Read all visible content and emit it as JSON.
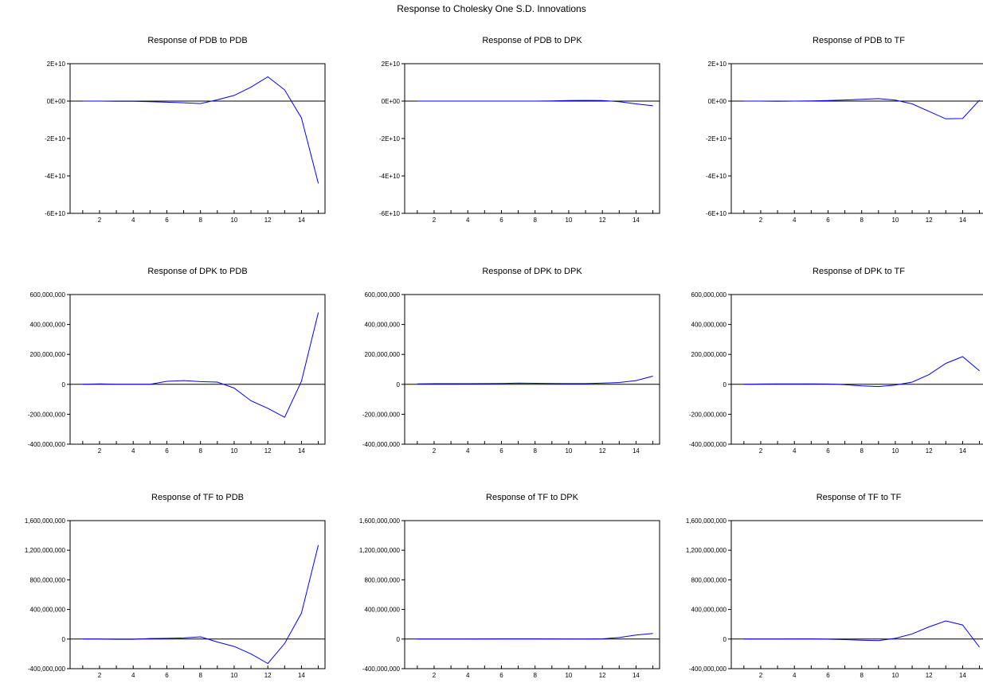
{
  "figure": {
    "title": "Response to Cholesky One S.D. Innovations",
    "colors": {
      "line": "#0000ff",
      "axis": "#000000",
      "zero_line": "#000000"
    }
  },
  "chart_data": [
    {
      "type": "line",
      "title": "Response of PDB to PDB",
      "x": [
        1,
        2,
        3,
        4,
        5,
        6,
        7,
        8,
        9,
        10,
        11,
        12,
        13,
        14,
        15
      ],
      "xticks": [
        "2",
        "4",
        "6",
        "8",
        "10",
        "12",
        "14"
      ],
      "ylim": [
        -60000000000,
        20000000000
      ],
      "yticks": [
        -60000000000,
        -40000000000,
        -20000000000,
        0,
        20000000000
      ],
      "ytick_labels": [
        "-6E+10",
        "-4E+10",
        "-2E+10",
        "0E+00",
        "2E+10"
      ],
      "series": [
        {
          "values": [
            0,
            0,
            -100000000,
            -100000000,
            -300000000,
            -600000000,
            -900000000,
            -1300000000,
            700000000,
            3000000000,
            7500000000,
            13000000000,
            6000000000,
            -9000000000,
            -44000000000
          ]
        }
      ]
    },
    {
      "type": "line",
      "title": "Response of PDB to DPK",
      "x": [
        1,
        2,
        3,
        4,
        5,
        6,
        7,
        8,
        9,
        10,
        11,
        12,
        13,
        14,
        15
      ],
      "xticks": [
        "2",
        "4",
        "6",
        "8",
        "10",
        "12",
        "14"
      ],
      "ylim": [
        -60000000000,
        20000000000
      ],
      "yticks": [
        -60000000000,
        -40000000000,
        -20000000000,
        0,
        20000000000
      ],
      "ytick_labels": [
        "-6E+10",
        "-4E+10",
        "-2E+10",
        "0E+00",
        "2E+10"
      ],
      "series": [
        {
          "values": [
            0,
            0,
            0,
            0,
            0,
            0,
            0,
            0,
            100000000,
            300000000,
            400000000,
            300000000,
            -300000000,
            -1500000000,
            -2500000000
          ]
        }
      ]
    },
    {
      "type": "line",
      "title": "Response of PDB to TF",
      "x": [
        1,
        2,
        3,
        4,
        5,
        6,
        7,
        8,
        9,
        10,
        11,
        12,
        13,
        14,
        15
      ],
      "xticks": [
        "2",
        "4",
        "6",
        "8",
        "10",
        "12",
        "14"
      ],
      "ylim": [
        -60000000000,
        20000000000
      ],
      "yticks": [
        -60000000000,
        -40000000000,
        -20000000000,
        0,
        20000000000
      ],
      "ytick_labels": [
        "-6E+10",
        "-4E+10",
        "-2E+10",
        "0E+00",
        "2E+10"
      ],
      "series": [
        {
          "values": [
            0,
            0,
            -100000000,
            0,
            100000000,
            300000000,
            600000000,
            1000000000,
            1300000000,
            500000000,
            -1500000000,
            -5500000000,
            -9500000000,
            -9300000000,
            500000000
          ]
        }
      ]
    },
    {
      "type": "line",
      "title": "Response of DPK to PDB",
      "x": [
        1,
        2,
        3,
        4,
        5,
        6,
        7,
        8,
        9,
        10,
        11,
        12,
        13,
        14,
        15
      ],
      "xticks": [
        "2",
        "4",
        "6",
        "8",
        "10",
        "12",
        "14"
      ],
      "ylim": [
        -400000000,
        600000000
      ],
      "yticks": [
        -400000000,
        -200000000,
        0,
        200000000,
        400000000,
        600000000
      ],
      "ytick_labels": [
        "-400,000,000",
        "-200,000,000",
        "0",
        "200,000,000",
        "400,000,000",
        "600,000,000"
      ],
      "series": [
        {
          "values": [
            0,
            3000000,
            0,
            0,
            0,
            20000000,
            25000000,
            18000000,
            15000000,
            -25000000,
            -110000000,
            -160000000,
            -220000000,
            20000000,
            480000000
          ]
        }
      ]
    },
    {
      "type": "line",
      "title": "Response of DPK to DPK",
      "x": [
        1,
        2,
        3,
        4,
        5,
        6,
        7,
        8,
        9,
        10,
        11,
        12,
        13,
        14,
        15
      ],
      "xticks": [
        "2",
        "4",
        "6",
        "8",
        "10",
        "12",
        "14"
      ],
      "ylim": [
        -400000000,
        600000000
      ],
      "yticks": [
        -400000000,
        -200000000,
        0,
        200000000,
        400000000,
        600000000
      ],
      "ytick_labels": [
        "-400,000,000",
        "-200,000,000",
        "0",
        "200,000,000",
        "400,000,000",
        "600,000,000"
      ],
      "series": [
        {
          "values": [
            3000000,
            4000000,
            4000000,
            4000000,
            5000000,
            6000000,
            8000000,
            7000000,
            6000000,
            5000000,
            5000000,
            8000000,
            12000000,
            25000000,
            55000000
          ]
        }
      ]
    },
    {
      "type": "line",
      "title": "Response of DPK to TF",
      "x": [
        1,
        2,
        3,
        4,
        5,
        6,
        7,
        8,
        9,
        10,
        11,
        12,
        13,
        14,
        15
      ],
      "xticks": [
        "2",
        "4",
        "6",
        "8",
        "10",
        "12",
        "14"
      ],
      "ylim": [
        -400000000,
        600000000
      ],
      "yticks": [
        -400000000,
        -200000000,
        0,
        200000000,
        400000000,
        600000000
      ],
      "ytick_labels": [
        "-400,000,000",
        "-200,000,000",
        "0",
        "200,000,000",
        "400,000,000",
        "600,000,000"
      ],
      "series": [
        {
          "values": [
            0,
            2000000,
            3000000,
            3000000,
            3000000,
            2000000,
            -2000000,
            -10000000,
            -15000000,
            -5000000,
            15000000,
            65000000,
            140000000,
            185000000,
            90000000
          ]
        }
      ]
    },
    {
      "type": "line",
      "title": "Response of TF to PDB",
      "x": [
        1,
        2,
        3,
        4,
        5,
        6,
        7,
        8,
        9,
        10,
        11,
        12,
        13,
        14,
        15
      ],
      "xticks": [
        "2",
        "4",
        "6",
        "8",
        "10",
        "12",
        "14"
      ],
      "ylim": [
        -400000000,
        1600000000
      ],
      "yticks": [
        -400000000,
        0,
        400000000,
        800000000,
        1200000000,
        1600000000
      ],
      "ytick_labels": [
        "-400,000,000",
        "0",
        "400,000,000",
        "800,000,000",
        "1,200,000,000",
        "1,600,000,000"
      ],
      "series": [
        {
          "values": [
            0,
            0,
            -3000000,
            -3000000,
            8000000,
            10000000,
            15000000,
            30000000,
            -40000000,
            -100000000,
            -200000000,
            -330000000,
            -60000000,
            350000000,
            1270000000
          ]
        }
      ]
    },
    {
      "type": "line",
      "title": "Response of TF to DPK",
      "x": [
        1,
        2,
        3,
        4,
        5,
        6,
        7,
        8,
        9,
        10,
        11,
        12,
        13,
        14,
        15
      ],
      "xticks": [
        "2",
        "4",
        "6",
        "8",
        "10",
        "12",
        "14"
      ],
      "ylim": [
        -400000000,
        1600000000
      ],
      "yticks": [
        -400000000,
        0,
        400000000,
        800000000,
        1200000000,
        1600000000
      ],
      "ytick_labels": [
        "-400,000,000",
        "0",
        "400,000,000",
        "800,000,000",
        "1,200,000,000",
        "1,600,000,000"
      ],
      "series": [
        {
          "values": [
            0,
            0,
            0,
            0,
            2000000,
            3000000,
            3000000,
            3000000,
            2000000,
            0,
            0,
            3000000,
            20000000,
            55000000,
            75000000
          ]
        }
      ]
    },
    {
      "type": "line",
      "title": "Response of TF to TF",
      "x": [
        1,
        2,
        3,
        4,
        5,
        6,
        7,
        8,
        9,
        10,
        11,
        12,
        13,
        14,
        15
      ],
      "xticks": [
        "2",
        "4",
        "6",
        "8",
        "10",
        "12",
        "14"
      ],
      "ylim": [
        -400000000,
        1600000000
      ],
      "yticks": [
        -400000000,
        0,
        400000000,
        800000000,
        1200000000,
        1600000000
      ],
      "ytick_labels": [
        "-400,000,000",
        "0",
        "400,000,000",
        "800,000,000",
        "1,200,000,000",
        "1,600,000,000"
      ],
      "series": [
        {
          "values": [
            0,
            0,
            0,
            2000000,
            2000000,
            -2000000,
            -8000000,
            -15000000,
            -20000000,
            10000000,
            70000000,
            165000000,
            245000000,
            190000000,
            -110000000
          ]
        }
      ]
    }
  ]
}
